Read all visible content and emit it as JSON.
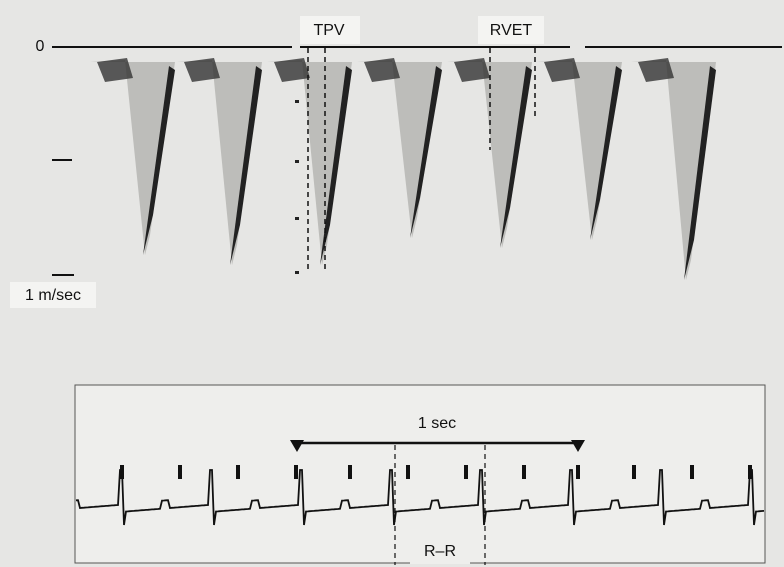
{
  "labels": {
    "zero": "0",
    "scale": "1 m/sec",
    "tpv": "TPV",
    "rvet": "RVET",
    "one_sec": "1 sec",
    "rr": "R–R"
  }
}
